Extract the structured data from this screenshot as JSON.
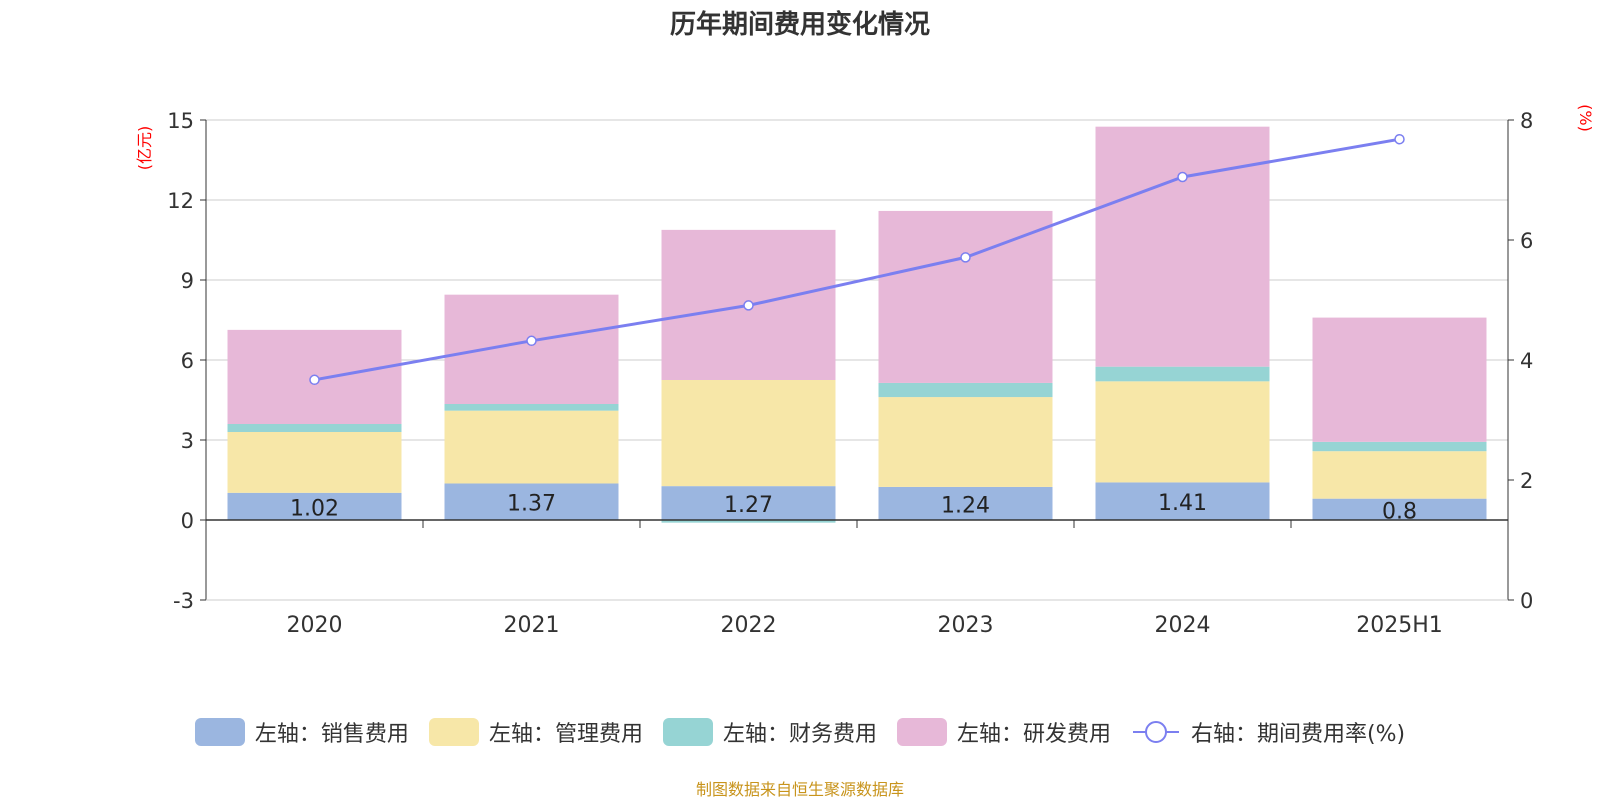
{
  "title": "历年期间费用变化情况",
  "source": "制图数据来自恒生聚源数据库",
  "colors": {
    "sales": "#9bb6e0",
    "admin": "#f7e7a8",
    "finance": "#96d4d4",
    "rd": "#e7b8d8",
    "rate": "#7b7ff0",
    "axis_unit": "#ff0000",
    "text": "#333333",
    "grid": "#cccccc"
  },
  "chart_data": {
    "type": "bar",
    "stacked": true,
    "categories": [
      "2020",
      "2021",
      "2022",
      "2023",
      "2024",
      "2025H1"
    ],
    "left_axis": {
      "label": "(亿元)",
      "ylim": [
        -3,
        15
      ],
      "ticks": [
        -3,
        0,
        3,
        6,
        9,
        12,
        15
      ]
    },
    "right_axis": {
      "label": "(%)",
      "ylim": [
        0,
        8
      ],
      "ticks": [
        0,
        2,
        4,
        6,
        8
      ]
    },
    "series": [
      {
        "name": "左轴：销售费用",
        "key": "sales",
        "axis": "left",
        "values": [
          1.02,
          1.37,
          1.27,
          1.24,
          1.41,
          0.8
        ],
        "show_labels": true
      },
      {
        "name": "左轴：管理费用",
        "key": "admin",
        "axis": "left",
        "values": [
          2.28,
          2.73,
          3.98,
          3.37,
          3.79,
          1.78
        ]
      },
      {
        "name": "左轴：财务费用",
        "key": "finance",
        "axis": "left",
        "values": [
          0.3,
          0.25,
          -0.1,
          0.53,
          0.55,
          0.35
        ]
      },
      {
        "name": "左轴：研发费用",
        "key": "rd",
        "axis": "left",
        "values": [
          3.53,
          4.1,
          5.63,
          6.45,
          9.0,
          4.66
        ]
      },
      {
        "name": "右轴：期间费用率(%)",
        "key": "rate",
        "axis": "right",
        "type": "line",
        "values": [
          3.67,
          4.32,
          4.91,
          5.71,
          7.05,
          7.68
        ]
      }
    ],
    "grid": true,
    "legend_position": "bottom"
  }
}
